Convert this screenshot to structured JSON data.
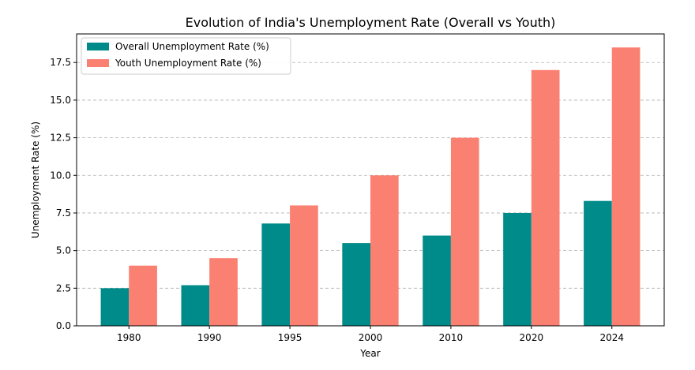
{
  "chart_data": {
    "type": "bar",
    "title": "Evolution of India's Unemployment Rate (Overall vs Youth)",
    "xlabel": "Year",
    "ylabel": "Unemployment Rate (%)",
    "categories": [
      "1980",
      "1990",
      "1995",
      "2000",
      "2010",
      "2020",
      "2024"
    ],
    "series": [
      {
        "name": "Overall Unemployment Rate (%)",
        "color": "#008b8b",
        "values": [
          2.5,
          2.7,
          6.8,
          5.5,
          6.0,
          7.5,
          8.3
        ]
      },
      {
        "name": "Youth Unemployment Rate (%)",
        "color": "#fa8072",
        "values": [
          4.0,
          4.5,
          8.0,
          10.0,
          12.5,
          17.0,
          18.5
        ]
      }
    ],
    "ylim": [
      0,
      19.4
    ],
    "yticks": [
      "0.0",
      "2.5",
      "5.0",
      "7.5",
      "10.0",
      "12.5",
      "15.0",
      "17.5"
    ],
    "grid": "y-dashed",
    "legend": "top-left"
  }
}
